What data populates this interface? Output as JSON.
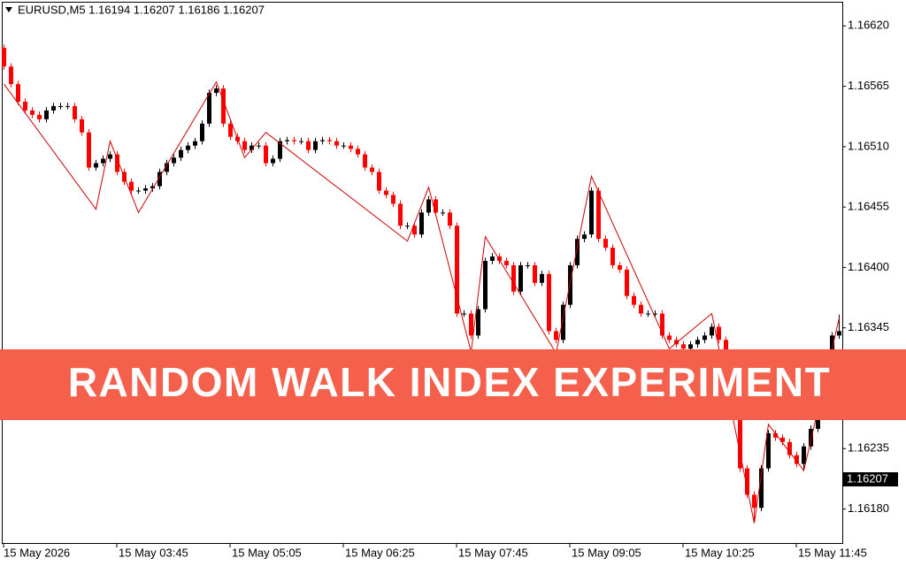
{
  "chart_data": {
    "type": "candlestick",
    "title": "EURUSD,M5  1.16194 1.16207 1.16186 1.16207",
    "banner": "RANDOM WALK INDEX EXPERIMENT",
    "categories": [
      "15 May 2026",
      null,
      null,
      null,
      null,
      null,
      null,
      null,
      null,
      null,
      null,
      null,
      null,
      null,
      null,
      null,
      "15 May 03:45",
      null,
      null,
      null,
      null,
      null,
      null,
      null,
      null,
      null,
      null,
      null,
      null,
      null,
      null,
      null,
      "15 May 05:05",
      null,
      null,
      null,
      null,
      null,
      null,
      null,
      null,
      null,
      null,
      null,
      null,
      null,
      null,
      null,
      "15 May 06:25",
      null,
      null,
      null,
      null,
      null,
      null,
      null,
      null,
      null,
      null,
      null,
      null,
      null,
      null,
      null,
      "15 May 07:45",
      null,
      null,
      null,
      null,
      null,
      null,
      null,
      null,
      null,
      null,
      null,
      null,
      null,
      null,
      null,
      "15 May 09:05",
      null,
      null,
      null,
      null,
      null,
      null,
      null,
      null,
      null,
      null,
      null,
      null,
      null,
      null,
      null,
      "15 May 10:25",
      null,
      null,
      null,
      null,
      null,
      null,
      null,
      null,
      null,
      null,
      null,
      null,
      null,
      null,
      null,
      "15 May 11:45",
      null,
      null,
      null,
      null,
      null,
      null
    ],
    "open": [
      1.166,
      1.16583,
      1.16567,
      1.16551,
      1.16543,
      1.16539,
      1.16535,
      1.16543,
      1.16547,
      1.16547,
      1.16547,
      1.16535,
      1.16523,
      1.16491,
      1.16495,
      1.16499,
      1.16503,
      1.16487,
      1.16478,
      1.1647,
      1.1647,
      1.16472,
      1.16474,
      1.16487,
      1.16495,
      1.165,
      1.16507,
      1.16511,
      1.16515,
      1.16531,
      1.16559,
      1.16563,
      1.16531,
      1.16519,
      1.16515,
      1.16507,
      1.16511,
      1.16511,
      1.16495,
      1.16499,
      1.16515,
      1.16516,
      1.16515,
      1.16515,
      1.16507,
      1.16515,
      1.16516,
      1.16515,
      1.16511,
      1.16511,
      1.16508,
      1.16503,
      1.16491,
      1.16487,
      1.1647,
      1.16466,
      1.16458,
      1.16438,
      1.16438,
      1.1643,
      1.1645,
      1.16462,
      1.1645,
      1.1645,
      1.16438,
      1.16358,
      1.16358,
      1.16338,
      1.16362,
      1.16406,
      1.1641,
      1.16406,
      1.16402,
      1.16378,
      1.16402,
      1.16402,
      1.16386,
      1.16394,
      1.16342,
      1.16334,
      1.16366,
      1.16402,
      1.16426,
      1.1643,
      1.1647,
      1.16426,
      1.16418,
      1.16402,
      1.16398,
      1.16374,
      1.16366,
      1.16358,
      1.16358,
      1.16358,
      1.16338,
      1.16334,
      1.1633,
      1.16326,
      1.1633,
      1.16334,
      1.16338,
      1.16346,
      1.16334,
      1.16306,
      1.16265,
      1.16217,
      1.16193,
      1.16181,
      1.16217,
      1.16249,
      1.16245,
      1.16241,
      1.16229,
      1.16221,
      1.16237,
      1.16253,
      1.1629,
      1.16322,
      1.16338
    ],
    "high": [
      1.16603,
      1.16586,
      1.1657,
      1.16554,
      1.16546,
      1.16542,
      1.16546,
      1.1655,
      1.1655,
      1.1655,
      1.1655,
      1.16538,
      1.16526,
      1.16498,
      1.16502,
      1.16506,
      1.16506,
      1.1649,
      1.16481,
      1.16473,
      1.16475,
      1.16477,
      1.1649,
      1.16498,
      1.16503,
      1.1651,
      1.16514,
      1.16518,
      1.16534,
      1.16562,
      1.16566,
      1.16566,
      1.16534,
      1.16522,
      1.16518,
      1.16514,
      1.16514,
      1.16514,
      1.16502,
      1.16518,
      1.16519,
      1.16519,
      1.16518,
      1.16518,
      1.16518,
      1.16519,
      1.16519,
      1.16518,
      1.16514,
      1.16514,
      1.16511,
      1.16506,
      1.16494,
      1.1649,
      1.16473,
      1.16469,
      1.16461,
      1.16441,
      1.16441,
      1.16453,
      1.16465,
      1.16465,
      1.16453,
      1.16453,
      1.16441,
      1.16361,
      1.16361,
      1.16365,
      1.16409,
      1.16413,
      1.16413,
      1.16409,
      1.16405,
      1.16405,
      1.16405,
      1.16405,
      1.16397,
      1.16397,
      1.16345,
      1.16369,
      1.16405,
      1.16429,
      1.16433,
      1.16473,
      1.16473,
      1.16429,
      1.16421,
      1.16405,
      1.16401,
      1.16377,
      1.16369,
      1.16361,
      1.16361,
      1.16361,
      1.16341,
      1.16337,
      1.16333,
      1.16333,
      1.16337,
      1.16341,
      1.16349,
      1.16349,
      1.16337,
      1.16309,
      1.16268,
      1.1622,
      1.16196,
      1.1622,
      1.16252,
      1.16252,
      1.16248,
      1.16244,
      1.16232,
      1.1624,
      1.16256,
      1.16293,
      1.16325,
      1.16341,
      1.16357
    ],
    "low": [
      1.1658,
      1.16564,
      1.16548,
      1.1654,
      1.16536,
      1.16532,
      1.16532,
      1.1654,
      1.16544,
      1.16544,
      1.16532,
      1.1652,
      1.16488,
      1.16488,
      1.16492,
      1.16496,
      1.16484,
      1.16475,
      1.16467,
      1.16467,
      1.16467,
      1.16469,
      1.16471,
      1.16484,
      1.16492,
      1.16497,
      1.16504,
      1.16508,
      1.16512,
      1.16528,
      1.16556,
      1.16528,
      1.16516,
      1.16512,
      1.16504,
      1.16504,
      1.16508,
      1.16492,
      1.16492,
      1.16496,
      1.16512,
      1.16512,
      1.16512,
      1.16504,
      1.16504,
      1.16512,
      1.16512,
      1.16508,
      1.16508,
      1.16505,
      1.165,
      1.16488,
      1.16484,
      1.16467,
      1.16463,
      1.16455,
      1.16435,
      1.16435,
      1.16427,
      1.16427,
      1.16447,
      1.16447,
      1.16447,
      1.16435,
      1.16355,
      1.16355,
      1.16335,
      1.16335,
      1.16359,
      1.16403,
      1.16403,
      1.16399,
      1.16375,
      1.16375,
      1.16399,
      1.16383,
      1.16383,
      1.16339,
      1.16331,
      1.16331,
      1.16363,
      1.16399,
      1.16423,
      1.16427,
      1.16423,
      1.16415,
      1.16399,
      1.16395,
      1.16371,
      1.16363,
      1.16355,
      1.16355,
      1.16355,
      1.16335,
      1.16331,
      1.16327,
      1.16323,
      1.16323,
      1.16327,
      1.16331,
      1.16335,
      1.16331,
      1.16303,
      1.16262,
      1.16214,
      1.1619,
      1.16167,
      1.16178,
      1.16214,
      1.16242,
      1.16238,
      1.16226,
      1.16218,
      1.16215,
      1.16234,
      1.1625,
      1.16287,
      1.16319,
      1.16335
    ],
    "close": [
      1.16583,
      1.16567,
      1.16551,
      1.16543,
      1.16539,
      1.16535,
      1.16543,
      1.16547,
      1.16547,
      1.16547,
      1.16535,
      1.16523,
      1.16491,
      1.16495,
      1.16499,
      1.16503,
      1.16487,
      1.16478,
      1.1647,
      1.1647,
      1.16472,
      1.16474,
      1.16487,
      1.16495,
      1.165,
      1.16507,
      1.16511,
      1.16515,
      1.16531,
      1.16559,
      1.16563,
      1.16531,
      1.16519,
      1.16515,
      1.16507,
      1.16511,
      1.16511,
      1.16495,
      1.16499,
      1.16515,
      1.16516,
      1.16515,
      1.16515,
      1.16507,
      1.16515,
      1.16516,
      1.16515,
      1.16511,
      1.16511,
      1.16508,
      1.16503,
      1.16491,
      1.16487,
      1.1647,
      1.16466,
      1.16458,
      1.16438,
      1.16438,
      1.1643,
      1.1645,
      1.16462,
      1.1645,
      1.1645,
      1.16438,
      1.16358,
      1.16358,
      1.16338,
      1.16362,
      1.16406,
      1.1641,
      1.16406,
      1.16402,
      1.16378,
      1.16402,
      1.16402,
      1.16386,
      1.16394,
      1.16342,
      1.16334,
      1.16366,
      1.16402,
      1.16426,
      1.1643,
      1.1647,
      1.16426,
      1.16418,
      1.16402,
      1.16398,
      1.16374,
      1.16366,
      1.16358,
      1.16358,
      1.16358,
      1.16338,
      1.16334,
      1.1633,
      1.16326,
      1.1633,
      1.16334,
      1.16338,
      1.16346,
      1.16334,
      1.16306,
      1.16265,
      1.16217,
      1.16193,
      1.16181,
      1.16217,
      1.16249,
      1.16245,
      1.16241,
      1.16229,
      1.16221,
      1.16237,
      1.16253,
      1.1629,
      1.16322,
      1.16338,
      1.16342
    ],
    "up_color": "#000000",
    "down_color": "#ff0000",
    "zigzag": {
      "color": "#cc0000",
      "x": [
        0,
        13,
        15,
        19,
        30,
        34,
        37,
        57,
        60,
        66,
        68,
        78,
        83,
        94,
        100,
        106,
        108,
        113,
        118
      ],
      "values": [
        1.16567,
        1.16453,
        1.16515,
        1.1645,
        1.16569,
        1.165,
        1.16523,
        1.16424,
        1.16473,
        1.16323,
        1.16428,
        1.16322,
        1.16483,
        1.16326,
        1.16358,
        1.16167,
        1.16257,
        1.16215,
        1.16354
      ]
    },
    "ylim": [
      1.16149,
      1.16642
    ],
    "yticks": [
      {
        "value": 1.1618,
        "label": "1.16180"
      },
      1.16235,
      1.16345,
      {
        "value": 1.164,
        "label": "1.16400"
      },
      1.16455,
      {
        "value": 1.1651,
        "label": "1.16510"
      },
      1.16565,
      {
        "value": 1.1662,
        "label": "1.16620"
      }
    ],
    "last_price": 1.16207
  }
}
